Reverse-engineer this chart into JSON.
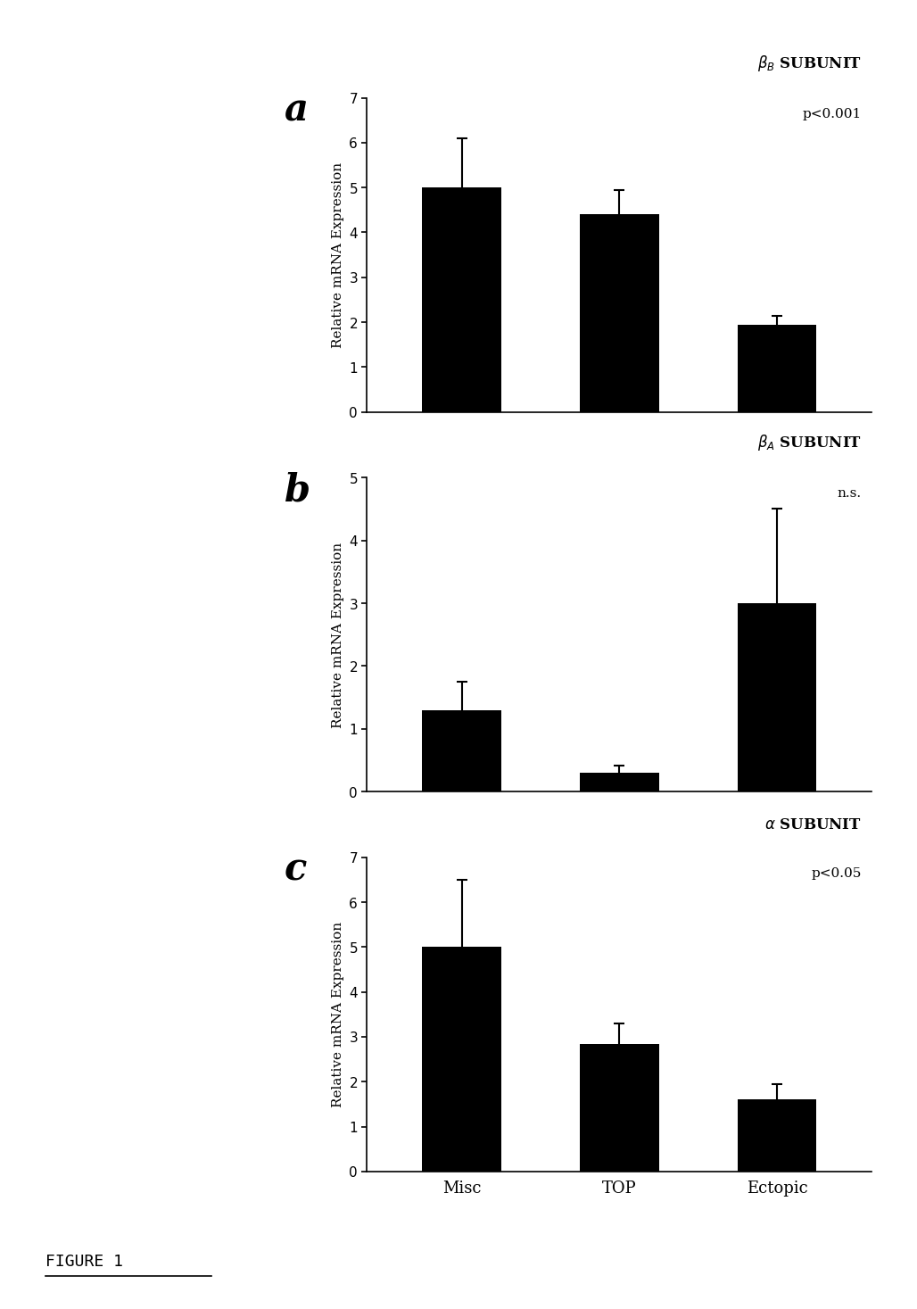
{
  "panel_a": {
    "title": "$\\beta_B$ SUBUNIT",
    "pvalue": "p<0.001",
    "categories": [
      "Misc",
      "TOP",
      "Ectopic"
    ],
    "values": [
      5.0,
      4.4,
      1.95
    ],
    "errors": [
      1.1,
      0.55,
      0.2
    ],
    "ylim": [
      0,
      7
    ],
    "yticks": [
      0,
      1,
      2,
      3,
      4,
      5,
      6,
      7
    ],
    "ylabel": "Relative mRNA Expression"
  },
  "panel_b": {
    "title": "$\\beta_A$ SUBUNIT",
    "pvalue": "n.s.",
    "categories": [
      "Misc",
      "TOP",
      "Ectopic"
    ],
    "values": [
      1.3,
      0.3,
      3.0
    ],
    "errors": [
      0.45,
      0.12,
      1.5
    ],
    "ylim": [
      0,
      5
    ],
    "yticks": [
      0,
      1,
      2,
      3,
      4,
      5
    ],
    "ylabel": "Relative mRNA Expression"
  },
  "panel_c": {
    "title": "$\\alpha$ SUBUNIT",
    "pvalue": "p<0.05",
    "categories": [
      "Misc",
      "TOP",
      "Ectopic"
    ],
    "values": [
      5.0,
      2.85,
      1.6
    ],
    "errors": [
      1.5,
      0.45,
      0.35
    ],
    "ylim": [
      0,
      7
    ],
    "yticks": [
      0,
      1,
      2,
      3,
      4,
      5,
      6,
      7
    ],
    "ylabel": "Relative mRNA Expression"
  },
  "bar_color": "#000000",
  "bar_width": 0.5,
  "figure_label_a": "a",
  "figure_label_b": "b",
  "figure_label_c": "c",
  "figure_caption": "FIGURE 1",
  "bg_color": "#ffffff"
}
